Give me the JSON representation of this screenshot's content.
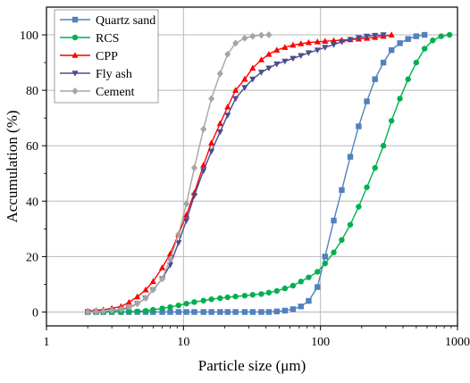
{
  "chart_data": {
    "type": "line",
    "title": "",
    "xlabel": "Particle size (μm)",
    "ylabel": "Accumulation (%)",
    "xscale": "log",
    "xlim": [
      1,
      1000
    ],
    "ylim": [
      -5,
      110
    ],
    "xticks": [
      1,
      10,
      100,
      1000
    ],
    "xtick_labels": [
      "1",
      "10",
      "100",
      "1000"
    ],
    "yticks": [
      0,
      20,
      40,
      60,
      80,
      100
    ],
    "ytick_labels": [
      "0",
      "20",
      "40",
      "60",
      "80",
      "100"
    ],
    "grid": true,
    "legend_position": "top-left",
    "series": [
      {
        "name": "Quartz sand",
        "color": "#4f81bd",
        "marker": "square",
        "x": [
          2,
          2.3,
          2.6,
          3,
          3.5,
          4,
          4.6,
          5.3,
          6,
          7,
          8,
          9.2,
          10.5,
          12,
          14,
          16,
          18.5,
          21,
          24,
          28,
          32,
          37,
          42,
          48,
          55,
          63,
          72,
          82,
          95,
          108,
          125,
          143,
          165,
          190,
          218,
          250,
          288,
          330,
          380,
          436,
          500,
          575
        ],
        "y": [
          0,
          0,
          0,
          0,
          0,
          0,
          0,
          0,
          0,
          0,
          0,
          0,
          0,
          0,
          0,
          0,
          0,
          0,
          0,
          0,
          0,
          0,
          0,
          0.2,
          0.5,
          1,
          2,
          4,
          9,
          20,
          33,
          44,
          56,
          67,
          76,
          84,
          90,
          94.5,
          97,
          98.5,
          99.5,
          100
        ]
      },
      {
        "name": "RCS",
        "color": "#00b050",
        "marker": "circle",
        "x": [
          2,
          2.3,
          2.6,
          3,
          3.5,
          4,
          4.6,
          5.3,
          6,
          7,
          8,
          9.2,
          10.5,
          12,
          14,
          16,
          18.5,
          21,
          24,
          28,
          32,
          37,
          42,
          48,
          55,
          63,
          72,
          82,
          95,
          108,
          125,
          143,
          165,
          190,
          218,
          250,
          288,
          330,
          380,
          436,
          500,
          575,
          660,
          760,
          875
        ],
        "y": [
          0,
          0,
          0,
          0,
          0,
          0.1,
          0.2,
          0.4,
          0.8,
          1.3,
          1.8,
          2.4,
          3,
          3.6,
          4.1,
          4.6,
          5,
          5.3,
          5.6,
          5.9,
          6.2,
          6.5,
          7,
          7.6,
          8.5,
          9.5,
          11,
          12.5,
          14.5,
          17.5,
          21.5,
          26,
          31.5,
          38,
          45,
          52,
          60,
          69,
          77,
          84,
          90,
          95,
          98,
          99.5,
          100
        ]
      },
      {
        "name": "CPP",
        "color": "#ff0000",
        "marker": "triangle-up",
        "x": [
          2,
          2.3,
          2.6,
          3,
          3.5,
          4,
          4.6,
          5.3,
          6,
          7,
          8,
          9.2,
          10.5,
          12,
          14,
          16,
          18.5,
          21,
          24,
          28,
          32,
          37,
          42,
          48,
          55,
          63,
          72,
          82,
          95,
          108,
          125,
          143,
          165,
          190,
          218,
          250,
          288,
          330
        ],
        "y": [
          0.3,
          0.5,
          0.8,
          1.3,
          2,
          3.5,
          5.5,
          8,
          11,
          16,
          21,
          28,
          35,
          43,
          53,
          61,
          68,
          74,
          80,
          84,
          88,
          91,
          93,
          94.5,
          95.5,
          96.3,
          96.8,
          97.2,
          97.5,
          97.7,
          97.9,
          98.1,
          98.3,
          98.5,
          98.8,
          99.1,
          99.5,
          100
        ]
      },
      {
        "name": "Fly ash",
        "color": "#4b4b8f",
        "marker": "triangle-down",
        "x": [
          2,
          2.3,
          2.6,
          3,
          3.5,
          4,
          4.6,
          5.3,
          6,
          7,
          8,
          9.2,
          10.5,
          12,
          14,
          16,
          18.5,
          21,
          24,
          28,
          32,
          37,
          42,
          48,
          55,
          63,
          72,
          82,
          95,
          108,
          125,
          143,
          165,
          190,
          218,
          250,
          288
        ],
        "y": [
          0,
          0.1,
          0.2,
          0.4,
          0.8,
          1.5,
          3,
          5,
          8,
          12,
          17,
          25,
          33,
          42,
          51,
          58,
          65,
          71,
          77,
          81,
          84,
          86.5,
          88,
          89.5,
          90.5,
          91.5,
          92.5,
          93.5,
          94.5,
          95.5,
          96.5,
          97.5,
          98.3,
          99,
          99.5,
          99.8,
          100
        ]
      },
      {
        "name": "Cement",
        "color": "#a5a5a5",
        "marker": "diamond",
        "x": [
          2,
          2.3,
          2.6,
          3,
          3.5,
          4,
          4.6,
          5.3,
          6,
          7,
          8,
          9.2,
          10.5,
          12,
          14,
          16,
          18.5,
          21,
          24,
          28,
          32,
          37,
          42
        ],
        "y": [
          0,
          0.1,
          0.3,
          0.6,
          1,
          1.8,
          3,
          5,
          8,
          12,
          19,
          28,
          39,
          52,
          66,
          77,
          86,
          93,
          97,
          98.8,
          99.5,
          99.9,
          100
        ]
      }
    ]
  }
}
